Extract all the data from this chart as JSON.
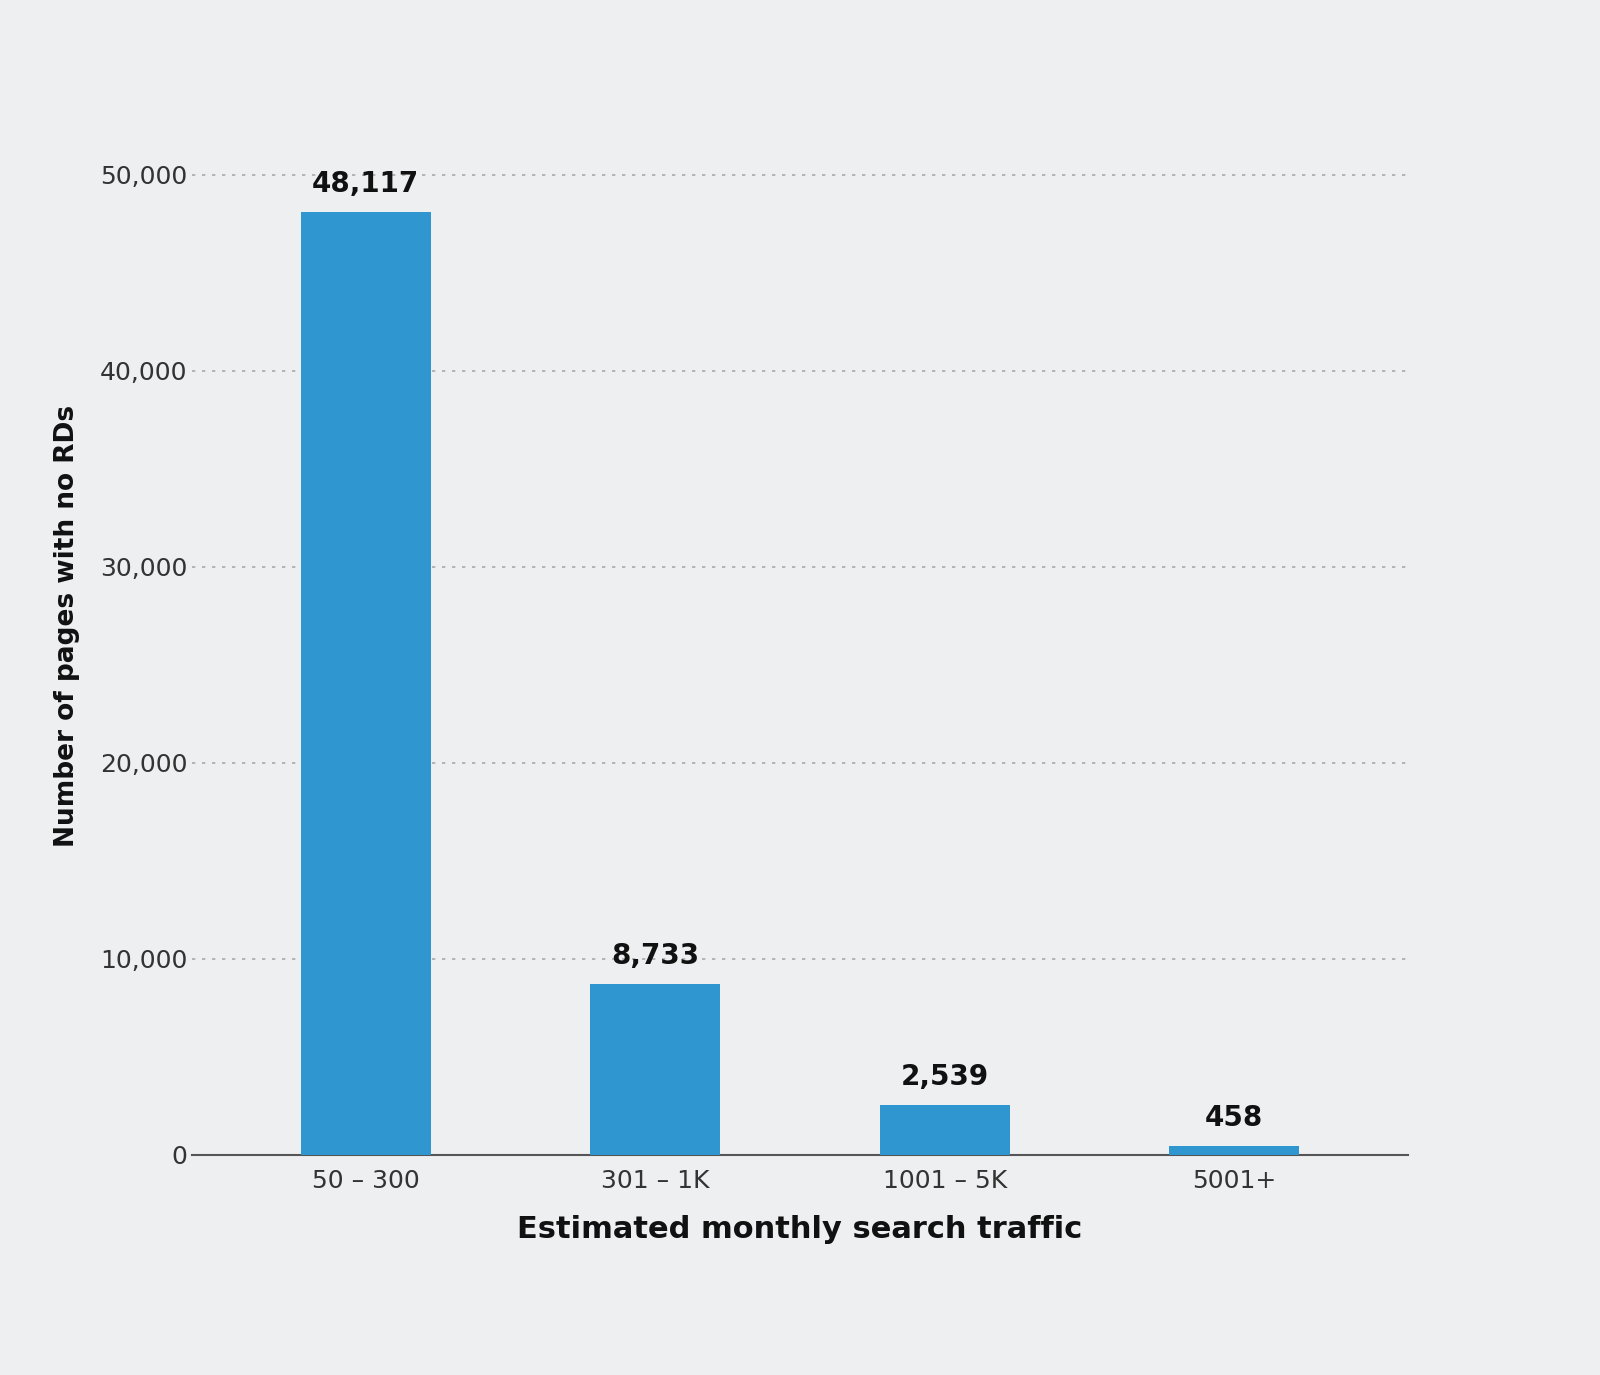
{
  "categories": [
    "50 – 300",
    "301 – 1K",
    "1001 – 5K",
    "5001+"
  ],
  "values": [
    48117,
    8733,
    2539,
    458
  ],
  "bar_labels": [
    "48,117",
    "8,733",
    "2,539",
    "458"
  ],
  "bar_color": "#2F96D0",
  "background_color": "#eeeff1",
  "plot_bg_color": "#eeeff1",
  "ylabel": "Number of pages with no RDs",
  "xlabel": "Estimated monthly search traffic",
  "yticks": [
    0,
    10000,
    20000,
    30000,
    40000,
    50000
  ],
  "ytick_labels": [
    "0",
    "10,000",
    "20,000",
    "30,000",
    "40,000",
    "50,000"
  ],
  "ylim": [
    0,
    54000
  ],
  "tick_fontsize": 18,
  "bar_label_fontsize": 20,
  "ylabel_fontsize": 19,
  "xlabel_fontsize": 22
}
